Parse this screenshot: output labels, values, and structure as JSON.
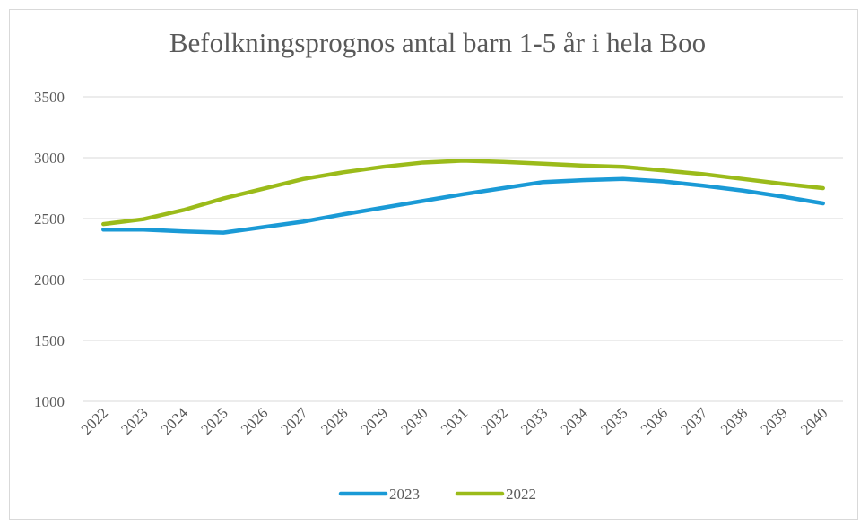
{
  "chart_data": {
    "type": "line",
    "title": "Befolkningsprognos antal barn 1-5 år i hela Boo",
    "categories": [
      "2022",
      "2023",
      "2024",
      "2025",
      "2026",
      "2027",
      "2028",
      "2029",
      "2030",
      "2031",
      "2032",
      "2033",
      "2034",
      "2035",
      "2036",
      "2037",
      "2038",
      "2039",
      "2040"
    ],
    "series": [
      {
        "name": "2023",
        "color": "#1a9ad6",
        "values": [
          2410,
          2410,
          2395,
          2385,
          2430,
          2475,
          2535,
          2590,
          2645,
          2700,
          2750,
          2800,
          2815,
          2825,
          2805,
          2770,
          2730,
          2680,
          2625
        ]
      },
      {
        "name": "2022",
        "color": "#9bbb1a",
        "values": [
          2455,
          2495,
          2570,
          2665,
          2745,
          2825,
          2880,
          2925,
          2960,
          2975,
          2965,
          2950,
          2935,
          2925,
          2895,
          2865,
          2825,
          2785,
          2750
        ]
      }
    ],
    "ylim": [
      1000,
      3500
    ],
    "yticks": [
      1000,
      1500,
      2000,
      2500,
      3000,
      3500
    ],
    "grid": true,
    "legend": "bottom"
  }
}
